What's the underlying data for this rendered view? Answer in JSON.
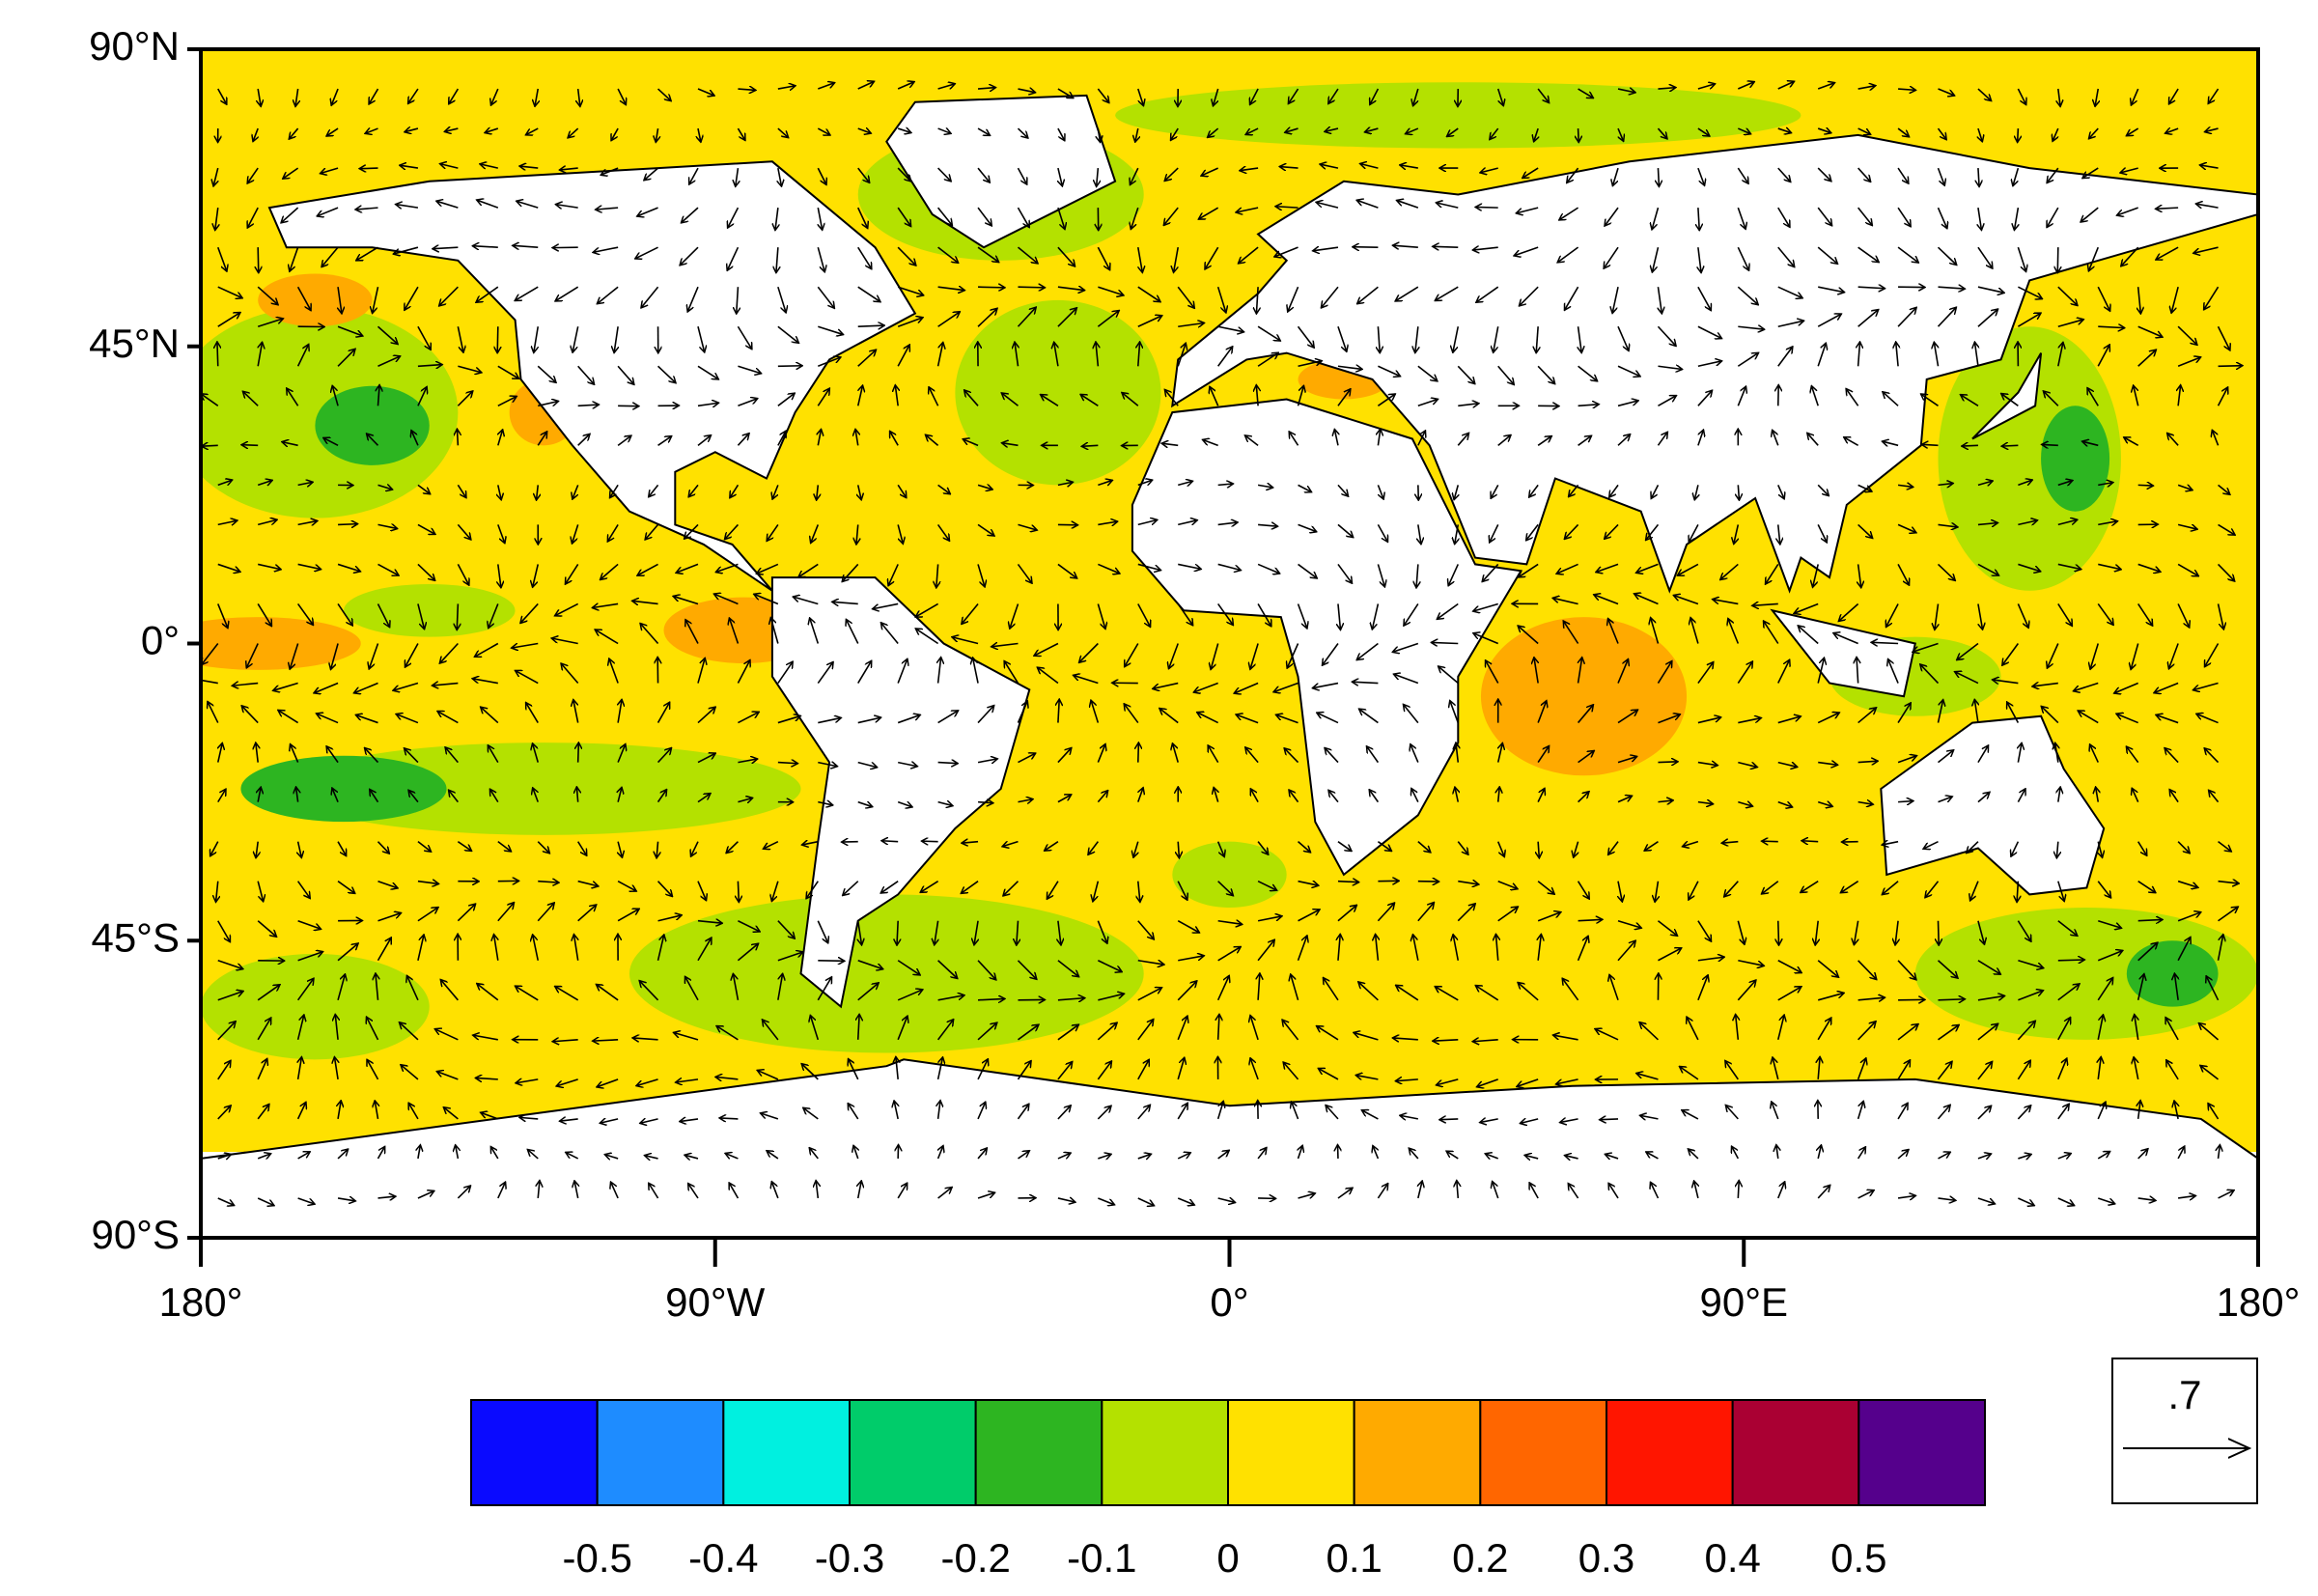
{
  "map": {
    "lon_range": [
      -180,
      180
    ],
    "lat_range": [
      -90,
      90
    ],
    "lat_ticks": [
      {
        "value": 90,
        "label": "90°N"
      },
      {
        "value": 45,
        "label": "45°N"
      },
      {
        "value": 0,
        "label": "0°"
      },
      {
        "value": -45,
        "label": "45°S"
      },
      {
        "value": -90,
        "label": "90°S"
      }
    ],
    "lon_ticks": [
      {
        "value": -180,
        "label": "180°"
      },
      {
        "value": -90,
        "label": "90°W"
      },
      {
        "value": 0,
        "label": "0°"
      },
      {
        "value": 90,
        "label": "90°E"
      },
      {
        "value": 180,
        "label": "180°"
      }
    ],
    "colorbar": {
      "levels": [
        -0.5,
        -0.4,
        -0.3,
        -0.2,
        -0.1,
        0,
        0.1,
        0.2,
        0.3,
        0.4,
        0.5
      ],
      "colors": [
        "#0a0aff",
        "#1e8cff",
        "#00f0e0",
        "#00cc6a",
        "#2db521",
        "#b4e100",
        "#ffe100",
        "#ffaa00",
        "#ff6600",
        "#ff1500",
        "#aa0033",
        "#55008c"
      ]
    },
    "reference_vector": {
      "value": 0.7,
      "label": ".7"
    }
  }
}
